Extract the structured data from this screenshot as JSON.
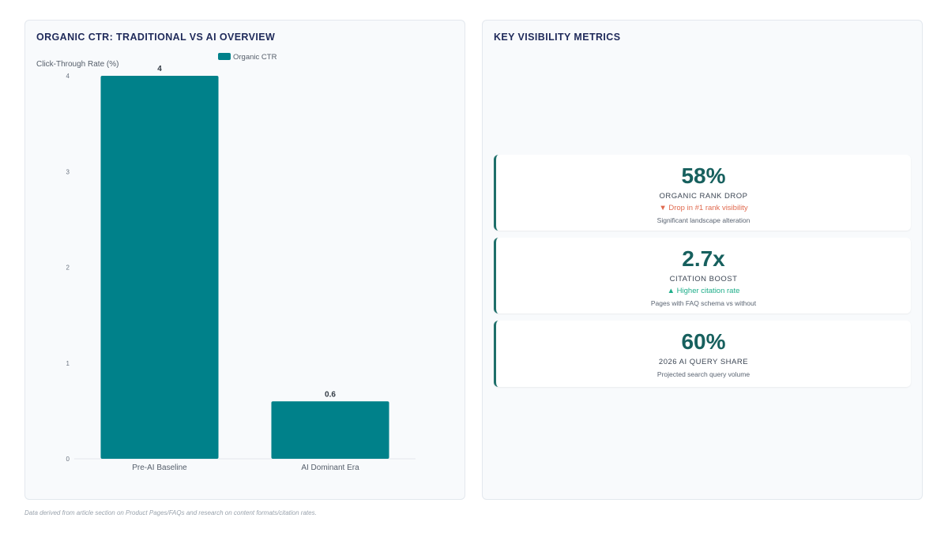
{
  "left_panel": {
    "title": "ORGANIC CTR: TRADITIONAL VS AI OVERVIEW"
  },
  "right_panel": {
    "title": "KEY VISIBILITY METRICS",
    "metrics": [
      {
        "value": "58%",
        "label": "ORGANIC RANK DROP",
        "trend": "▼ Drop in #1 rank visibility",
        "trend_color": "#e06a4f",
        "note": "Significant landscape alteration"
      },
      {
        "value": "2.7x",
        "label": "CITATION BOOST",
        "trend": "▲ Higher citation rate",
        "trend_color": "#1fae8a",
        "note": "Pages with FAQ schema vs without"
      },
      {
        "value": "60%",
        "label": "2026 AI QUERY SHARE",
        "trend": "",
        "trend_color": "",
        "note": "Projected search query volume"
      }
    ]
  },
  "footer": "Data derived from article section on Product Pages/FAQs and research on content formats/citation rates.",
  "colors": {
    "bar": "#00818a",
    "accent": "#1e6f6a",
    "title": "#1f2a5a"
  },
  "chart_data": {
    "type": "bar",
    "title": "ORGANIC CTR: TRADITIONAL VS AI OVERVIEW",
    "categories": [
      "Pre-AI Baseline",
      "AI Dominant Era"
    ],
    "series": [
      {
        "name": "Organic CTR",
        "values": [
          4,
          0.6
        ]
      }
    ],
    "data_labels": [
      "4",
      "0.6"
    ],
    "ylabel": "Click-Through Rate (%)",
    "xlabel": "",
    "ylim": [
      0,
      4
    ],
    "yticks": [
      0,
      1,
      2,
      3,
      4
    ],
    "legend": "top-center",
    "grid": false
  }
}
